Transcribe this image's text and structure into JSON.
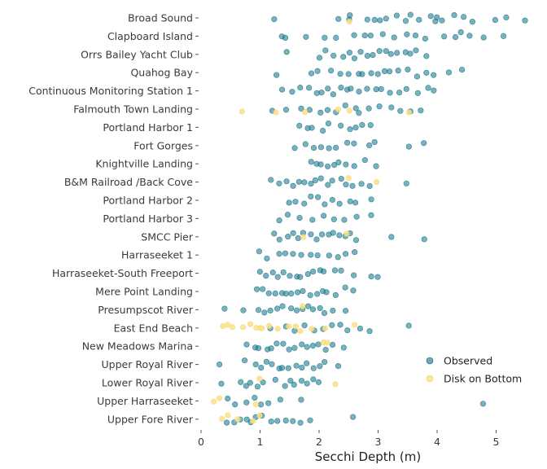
{
  "chart_data": {
    "type": "scatter",
    "title": "",
    "xlabel": "Secchi Depth (m)",
    "ylabel": "",
    "xlim": [
      0,
      5.6
    ],
    "xticks": [
      0,
      1,
      2,
      3,
      4,
      5
    ],
    "grid": false,
    "legend_position": "bottom-right",
    "categories": [
      "Broad Sound",
      "Clapboard Island",
      "Orrs Bailey Yacht Club",
      "Quahog Bay",
      "Continuous Monitoring Station 1",
      "Falmouth Town Landing",
      "Portland Harbor 1",
      "Fort Gorges",
      "Knightville Landing",
      "B&M Railroad /Back Cove",
      "Portland Harbor 2",
      "Portland Harbor 3",
      "SMCC Pier",
      "Harraseeket 1",
      "Harraseeket-South Freeport",
      "Mere Point Landing",
      "Presumpscot River",
      "East End Beach",
      "New Meadows Marina",
      "Upper Royal River",
      "Lower Royal River",
      "Upper Harraseeket",
      "Upper Fore River"
    ],
    "series": [
      {
        "name": "Observed",
        "color": "#1a7f94",
        "points": [
          [
            "Broad Sound",
            [
              1.25,
              2.3,
              2.5,
              2.5,
              2.8,
              2.95,
              3.05,
              3.15,
              3.3,
              3.45,
              3.55,
              3.7,
              3.9,
              3.95,
              4.0,
              4.1,
              4.3,
              4.45,
              4.6,
              5.0,
              5.15,
              5.5
            ]
          ],
          [
            "Clapboard Island",
            [
              1.35,
              1.45,
              1.8,
              2.1,
              2.3,
              2.6,
              2.75,
              2.9,
              3.1,
              3.3,
              3.5,
              3.65,
              3.8,
              4.1,
              4.3,
              4.4,
              4.55,
              4.8,
              5.1
            ]
          ],
          [
            "Orrs Bailey Yacht Club",
            [
              1.45,
              2.0,
              2.1,
              2.25,
              2.4,
              2.5,
              2.6,
              2.7,
              2.8,
              2.9,
              3.0,
              3.15,
              3.2,
              3.3,
              3.45,
              3.55,
              3.65,
              3.8
            ]
          ],
          [
            "Quahog Bay",
            [
              1.25,
              1.85,
              2.0,
              2.2,
              2.35,
              2.5,
              2.65,
              2.75,
              2.9,
              3.0,
              3.1,
              3.2,
              3.35,
              3.5,
              3.65,
              3.8,
              3.95,
              4.2,
              4.4
            ]
          ],
          [
            "Continuous Monitoring Station 1",
            [
              1.4,
              1.55,
              1.7,
              1.85,
              1.95,
              2.05,
              2.15,
              2.25,
              2.35,
              2.45,
              2.55,
              2.65,
              2.8,
              2.95,
              3.05,
              3.2,
              3.35,
              3.5,
              3.7,
              3.85,
              3.95
            ]
          ],
          [
            "Falmouth Town Landing",
            [
              1.2,
              1.45,
              1.7,
              1.85,
              2.0,
              2.15,
              2.3,
              2.45,
              2.6,
              2.7,
              2.85,
              3.0,
              3.2,
              3.35,
              3.55,
              3.7
            ]
          ],
          [
            "Portland Harbor 1",
            [
              1.65,
              1.8,
              1.9,
              2.05,
              2.15,
              2.35,
              2.5,
              2.6,
              2.75,
              2.85
            ]
          ],
          [
            "Fort Gorges",
            [
              1.6,
              1.75,
              1.9,
              2.05,
              2.15,
              2.3,
              2.5,
              2.6,
              2.85,
              2.95,
              3.5,
              3.8
            ]
          ],
          [
            "Knightville Landing",
            [
              1.85,
              1.95,
              2.05,
              2.15,
              2.25,
              2.35,
              2.45,
              2.6,
              2.75,
              2.95
            ]
          ],
          [
            "B&M Railroad /Back Cove",
            [
              1.2,
              1.3,
              1.45,
              1.55,
              1.65,
              1.75,
              1.85,
              1.95,
              2.05,
              2.15,
              2.25,
              2.35,
              2.45,
              2.55,
              2.7,
              2.85,
              3.5
            ]
          ],
          [
            "Portland Harbor 2",
            [
              1.5,
              1.6,
              1.75,
              1.85,
              2.0,
              2.1,
              2.25,
              2.35,
              2.5,
              2.6,
              2.9
            ]
          ],
          [
            "Portland Harbor 3",
            [
              1.35,
              1.45,
              1.65,
              1.9,
              2.1,
              2.25,
              2.45,
              2.65,
              2.9
            ]
          ],
          [
            "SMCC Pier",
            [
              1.25,
              1.35,
              1.45,
              1.55,
              1.65,
              1.75,
              1.85,
              1.95,
              2.05,
              2.15,
              2.25,
              2.35,
              2.45,
              2.55,
              2.65,
              3.2,
              3.8
            ]
          ],
          [
            "Harraseeket 1",
            [
              1.0,
              1.1,
              1.3,
              1.45,
              1.55,
              1.7,
              1.85,
              2.0,
              2.15,
              2.3,
              2.45,
              2.6
            ]
          ],
          [
            "Harraseeket-South Freeport",
            [
              1.0,
              1.1,
              1.2,
              1.3,
              1.4,
              1.5,
              1.6,
              1.7,
              1.8,
              1.9,
              2.0,
              2.1,
              2.25,
              2.4,
              2.6,
              2.9,
              3.0
            ]
          ],
          [
            "Mere Point Landing",
            [
              0.95,
              1.05,
              1.15,
              1.25,
              1.35,
              1.45,
              1.55,
              1.65,
              1.75,
              1.85,
              1.95,
              2.05,
              2.15,
              2.3,
              2.45,
              2.6
            ]
          ],
          [
            "Presumpscot River",
            [
              0.4,
              0.7,
              1.0,
              1.1,
              1.2,
              1.3,
              1.4,
              1.5,
              1.6,
              1.7,
              1.8,
              1.9,
              2.0,
              2.1,
              2.25,
              2.45
            ]
          ],
          [
            "East End Beach",
            [
              1.2,
              1.45,
              1.6,
              1.75,
              1.9,
              2.05,
              2.2,
              2.35,
              2.5,
              2.7,
              2.85,
              3.5
            ]
          ],
          [
            "New Meadows Marina",
            [
              0.75,
              0.9,
              1.0,
              1.1,
              1.2,
              1.3,
              1.4,
              1.5,
              1.6,
              1.7,
              1.8,
              1.9,
              2.0,
              2.1,
              2.25,
              2.4
            ]
          ],
          [
            "Upper Royal River",
            [
              0.3,
              0.75,
              0.9,
              1.0,
              1.1,
              1.2,
              1.3,
              1.4,
              1.5,
              1.6,
              1.7,
              1.8,
              1.9,
              2.0,
              2.1,
              2.3
            ]
          ],
          [
            "Lower Royal River",
            [
              0.35,
              0.65,
              0.75,
              0.85,
              0.95,
              1.05,
              1.25,
              1.4,
              1.5,
              1.6,
              1.7,
              1.8,
              1.9,
              2.0
            ]
          ],
          [
            "Upper Harraseeket",
            [
              0.45,
              0.6,
              0.75,
              0.9,
              1.0,
              1.15,
              1.35,
              1.7,
              4.8
            ]
          ],
          [
            "Upper Fore River",
            [
              0.45,
              0.55,
              0.65,
              0.75,
              0.85,
              0.95,
              1.05,
              1.2,
              1.3,
              1.45,
              1.55,
              1.7,
              1.85,
              2.6
            ]
          ]
        ]
      },
      {
        "name": "Disk on Bottom",
        "color": "#fbe08a",
        "points": [
          [
            "Broad Sound",
            [
              2.5
            ]
          ],
          [
            "Falmouth Town Landing",
            [
              0.7,
              1.25,
              1.75,
              2.3,
              2.5,
              3.55
            ]
          ],
          [
            "B&M Railroad /Back Cove",
            [
              2.5,
              3.0
            ]
          ],
          [
            "SMCC Pier",
            [
              1.75,
              2.45
            ]
          ],
          [
            "East End Beach",
            [
              0.35,
              0.45,
              0.55,
              0.7,
              0.85,
              0.95,
              1.0,
              1.05,
              1.15,
              1.3,
              1.5,
              1.6,
              1.7,
              1.85,
              2.1,
              2.6
            ]
          ],
          [
            "New Meadows Marina",
            [
              2.05,
              2.15
            ]
          ],
          [
            "Presumpscot River",
            [
              1.7
            ]
          ],
          [
            "Lower Royal River",
            [
              1.0,
              2.3
            ]
          ],
          [
            "Upper Harraseeket",
            [
              0.2,
              0.3,
              0.95
            ]
          ],
          [
            "Upper Fore River",
            [
              0.35,
              0.45,
              0.6,
              0.9,
              1.0
            ]
          ]
        ]
      }
    ]
  }
}
